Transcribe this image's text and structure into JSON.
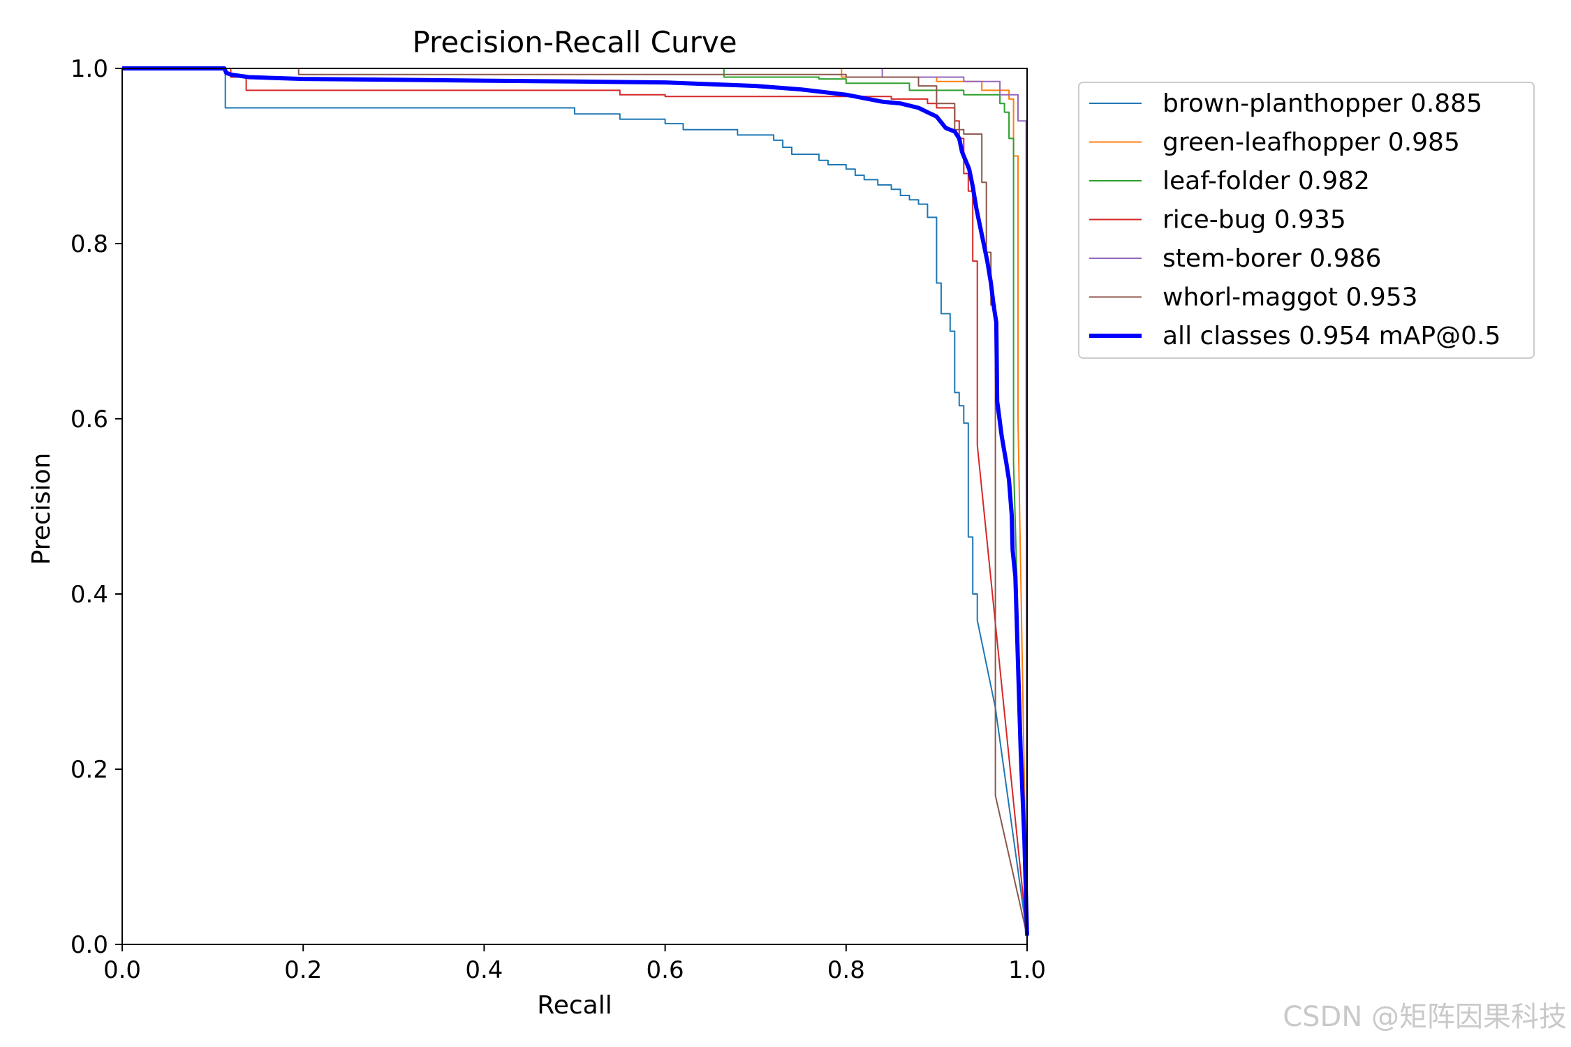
{
  "chart_data": {
    "type": "line",
    "title": "Precision-Recall Curve",
    "xlabel": "Recall",
    "ylabel": "Precision",
    "xlim": [
      0,
      1
    ],
    "ylim": [
      0,
      1
    ],
    "xticks": [
      "0.0",
      "0.2",
      "0.4",
      "0.6",
      "0.8",
      "1.0"
    ],
    "yticks": [
      "0.0",
      "0.2",
      "0.4",
      "0.6",
      "0.8",
      "1.0"
    ],
    "grid": false,
    "legend_position": "outside-right",
    "series": [
      {
        "name": "brown-planthopper 0.885",
        "color": "#1f77b4",
        "width": 2,
        "points": [
          [
            0,
            1.0
          ],
          [
            0.114,
            1.0
          ],
          [
            0.114,
            0.955
          ],
          [
            0.5,
            0.955
          ],
          [
            0.5,
            0.948
          ],
          [
            0.55,
            0.948
          ],
          [
            0.55,
            0.942
          ],
          [
            0.6,
            0.942
          ],
          [
            0.6,
            0.937
          ],
          [
            0.62,
            0.937
          ],
          [
            0.62,
            0.93
          ],
          [
            0.68,
            0.93
          ],
          [
            0.68,
            0.924
          ],
          [
            0.72,
            0.924
          ],
          [
            0.72,
            0.918
          ],
          [
            0.73,
            0.918
          ],
          [
            0.73,
            0.91
          ],
          [
            0.74,
            0.91
          ],
          [
            0.74,
            0.902
          ],
          [
            0.77,
            0.902
          ],
          [
            0.77,
            0.895
          ],
          [
            0.78,
            0.895
          ],
          [
            0.78,
            0.89
          ],
          [
            0.8,
            0.89
          ],
          [
            0.8,
            0.885
          ],
          [
            0.81,
            0.885
          ],
          [
            0.81,
            0.878
          ],
          [
            0.82,
            0.878
          ],
          [
            0.82,
            0.873
          ],
          [
            0.835,
            0.873
          ],
          [
            0.835,
            0.867
          ],
          [
            0.85,
            0.867
          ],
          [
            0.85,
            0.862
          ],
          [
            0.86,
            0.862
          ],
          [
            0.86,
            0.855
          ],
          [
            0.87,
            0.855
          ],
          [
            0.87,
            0.85
          ],
          [
            0.88,
            0.85
          ],
          [
            0.88,
            0.845
          ],
          [
            0.89,
            0.845
          ],
          [
            0.89,
            0.83
          ],
          [
            0.9,
            0.83
          ],
          [
            0.9,
            0.813
          ],
          [
            0.9,
            0.755
          ],
          [
            0.905,
            0.755
          ],
          [
            0.905,
            0.72
          ],
          [
            0.915,
            0.72
          ],
          [
            0.915,
            0.7
          ],
          [
            0.92,
            0.7
          ],
          [
            0.92,
            0.63
          ],
          [
            0.925,
            0.63
          ],
          [
            0.925,
            0.615
          ],
          [
            0.93,
            0.615
          ],
          [
            0.93,
            0.595
          ],
          [
            0.935,
            0.595
          ],
          [
            0.935,
            0.465
          ],
          [
            0.94,
            0.465
          ],
          [
            0.94,
            0.4
          ],
          [
            0.945,
            0.4
          ],
          [
            0.945,
            0.37
          ],
          [
            0.965,
            0.27
          ],
          [
            1.0,
            0.01
          ]
        ]
      },
      {
        "name": "green-leafhopper 0.985",
        "color": "#ff7f0e",
        "width": 2,
        "points": [
          [
            0,
            1.0
          ],
          [
            0.795,
            1.0
          ],
          [
            0.795,
            0.99
          ],
          [
            0.9,
            0.99
          ],
          [
            0.9,
            0.985
          ],
          [
            0.95,
            0.985
          ],
          [
            0.95,
            0.975
          ],
          [
            0.98,
            0.975
          ],
          [
            0.98,
            0.965
          ],
          [
            0.985,
            0.965
          ],
          [
            0.985,
            0.9
          ],
          [
            0.99,
            0.9
          ],
          [
            0.99,
            0.6
          ],
          [
            1.0,
            0.01
          ]
        ]
      },
      {
        "name": "leaf-folder 0.982",
        "color": "#2ca02c",
        "width": 2,
        "points": [
          [
            0,
            1.0
          ],
          [
            0.665,
            1.0
          ],
          [
            0.665,
            0.99
          ],
          [
            0.77,
            0.99
          ],
          [
            0.77,
            0.988
          ],
          [
            0.8,
            0.988
          ],
          [
            0.8,
            0.983
          ],
          [
            0.87,
            0.983
          ],
          [
            0.87,
            0.975
          ],
          [
            0.93,
            0.975
          ],
          [
            0.93,
            0.97
          ],
          [
            0.97,
            0.97
          ],
          [
            0.97,
            0.96
          ],
          [
            0.975,
            0.96
          ],
          [
            0.975,
            0.95
          ],
          [
            0.98,
            0.95
          ],
          [
            0.98,
            0.92
          ],
          [
            0.985,
            0.92
          ],
          [
            0.985,
            0.55
          ],
          [
            1.0,
            0.01
          ]
        ]
      },
      {
        "name": "rice-bug 0.935",
        "color": "#d62728",
        "width": 2,
        "points": [
          [
            0,
            1.0
          ],
          [
            0.12,
            1.0
          ],
          [
            0.12,
            0.99
          ],
          [
            0.137,
            0.99
          ],
          [
            0.137,
            0.975
          ],
          [
            0.55,
            0.975
          ],
          [
            0.55,
            0.97
          ],
          [
            0.6,
            0.97
          ],
          [
            0.6,
            0.968
          ],
          [
            0.85,
            0.968
          ],
          [
            0.85,
            0.965
          ],
          [
            0.89,
            0.965
          ],
          [
            0.89,
            0.96
          ],
          [
            0.9,
            0.96
          ],
          [
            0.9,
            0.955
          ],
          [
            0.92,
            0.955
          ],
          [
            0.92,
            0.94
          ],
          [
            0.925,
            0.94
          ],
          [
            0.925,
            0.92
          ],
          [
            0.93,
            0.92
          ],
          [
            0.93,
            0.88
          ],
          [
            0.935,
            0.88
          ],
          [
            0.935,
            0.86
          ],
          [
            0.94,
            0.86
          ],
          [
            0.94,
            0.78
          ],
          [
            0.945,
            0.78
          ],
          [
            0.945,
            0.57
          ],
          [
            1.0,
            0.01
          ]
        ]
      },
      {
        "name": "stem-borer 0.986",
        "color": "#9467bd",
        "width": 2,
        "points": [
          [
            0,
            1.0
          ],
          [
            0.84,
            1.0
          ],
          [
            0.84,
            0.99
          ],
          [
            0.93,
            0.99
          ],
          [
            0.93,
            0.985
          ],
          [
            0.97,
            0.985
          ],
          [
            0.97,
            0.97
          ],
          [
            0.99,
            0.97
          ],
          [
            0.99,
            0.94
          ],
          [
            0.999,
            0.94
          ],
          [
            0.999,
            0.6
          ],
          [
            1.0,
            0.01
          ]
        ]
      },
      {
        "name": "whorl-maggot 0.953",
        "color": "#8c564b",
        "width": 2,
        "points": [
          [
            0,
            1.0
          ],
          [
            0.195,
            1.0
          ],
          [
            0.195,
            0.993
          ],
          [
            0.8,
            0.993
          ],
          [
            0.8,
            0.99
          ],
          [
            0.88,
            0.99
          ],
          [
            0.88,
            0.98
          ],
          [
            0.9,
            0.98
          ],
          [
            0.9,
            0.96
          ],
          [
            0.92,
            0.96
          ],
          [
            0.92,
            0.93
          ],
          [
            0.93,
            0.93
          ],
          [
            0.93,
            0.925
          ],
          [
            0.95,
            0.925
          ],
          [
            0.95,
            0.87
          ],
          [
            0.955,
            0.87
          ],
          [
            0.955,
            0.79
          ],
          [
            0.96,
            0.79
          ],
          [
            0.96,
            0.73
          ],
          [
            0.965,
            0.73
          ],
          [
            0.965,
            0.17
          ],
          [
            1.0,
            0.01
          ]
        ]
      },
      {
        "name": "all classes 0.954 mAP@0.5",
        "color": "#0000ff",
        "width": 6,
        "points": [
          [
            0,
            1.0
          ],
          [
            0.113,
            1.0
          ],
          [
            0.115,
            0.995
          ],
          [
            0.12,
            0.993
          ],
          [
            0.14,
            0.99
          ],
          [
            0.2,
            0.988
          ],
          [
            0.3,
            0.987
          ],
          [
            0.4,
            0.986
          ],
          [
            0.5,
            0.985
          ],
          [
            0.6,
            0.984
          ],
          [
            0.65,
            0.982
          ],
          [
            0.7,
            0.98
          ],
          [
            0.75,
            0.976
          ],
          [
            0.8,
            0.97
          ],
          [
            0.82,
            0.966
          ],
          [
            0.84,
            0.962
          ],
          [
            0.86,
            0.96
          ],
          [
            0.88,
            0.955
          ],
          [
            0.89,
            0.95
          ],
          [
            0.9,
            0.945
          ],
          [
            0.91,
            0.932
          ],
          [
            0.92,
            0.928
          ],
          [
            0.925,
            0.92
          ],
          [
            0.928,
            0.905
          ],
          [
            0.932,
            0.895
          ],
          [
            0.936,
            0.885
          ],
          [
            0.94,
            0.865
          ],
          [
            0.944,
            0.84
          ],
          [
            0.948,
            0.82
          ],
          [
            0.952,
            0.8
          ],
          [
            0.956,
            0.78
          ],
          [
            0.96,
            0.755
          ],
          [
            0.963,
            0.73
          ],
          [
            0.966,
            0.71
          ],
          [
            0.967,
            0.62
          ],
          [
            0.972,
            0.58
          ],
          [
            0.977,
            0.55
          ],
          [
            0.98,
            0.53
          ],
          [
            0.983,
            0.49
          ],
          [
            0.984,
            0.45
          ],
          [
            0.987,
            0.42
          ],
          [
            0.99,
            0.32
          ],
          [
            0.993,
            0.22
          ],
          [
            0.997,
            0.12
          ],
          [
            1.0,
            0.01
          ]
        ]
      }
    ]
  },
  "watermark": "CSDN @矩阵因果科技"
}
